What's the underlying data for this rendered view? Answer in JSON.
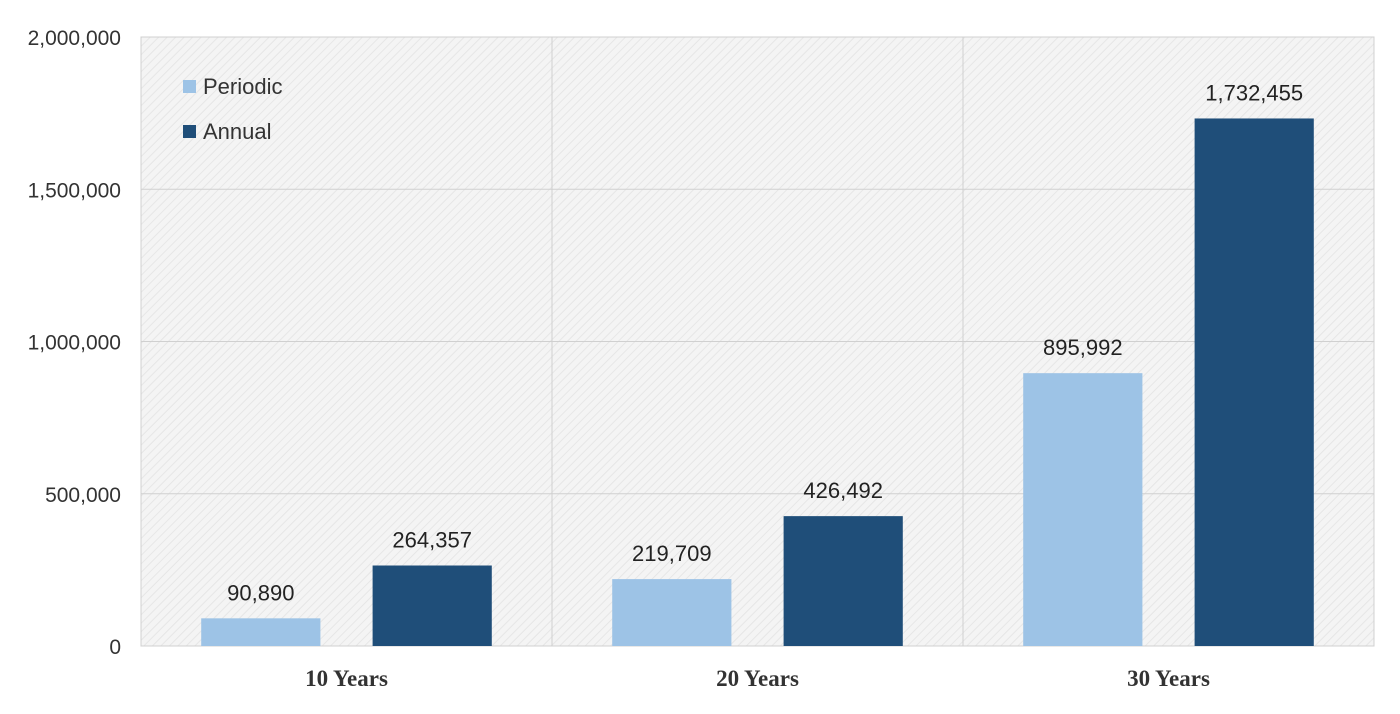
{
  "colors": {
    "periodic": "#9dc3e6",
    "annual": "#1f4e79",
    "grid": "#d0d0d0",
    "plot_bg": "#f2f2f2"
  },
  "chart_data": {
    "type": "bar",
    "categories": [
      "10 Years",
      "20 Years",
      "30 Years"
    ],
    "series": [
      {
        "name": "Periodic",
        "values": [
          90890,
          219709,
          895992
        ],
        "labels": [
          "90,890",
          "219,709",
          "895,992"
        ]
      },
      {
        "name": "Annual",
        "values": [
          264357,
          426492,
          1732455
        ],
        "labels": [
          "264,357",
          "426,492",
          "1,732,455"
        ]
      }
    ],
    "ylim": [
      0,
      2000000
    ],
    "yticks": [
      0,
      500000,
      1000000,
      1500000,
      2000000
    ],
    "ytick_labels": [
      "0",
      "500,000",
      "1,000,000",
      "1,500,000",
      "2,000,000"
    ],
    "grid": true,
    "legend_position": "top-left",
    "title": "",
    "xlabel": "",
    "ylabel": ""
  }
}
